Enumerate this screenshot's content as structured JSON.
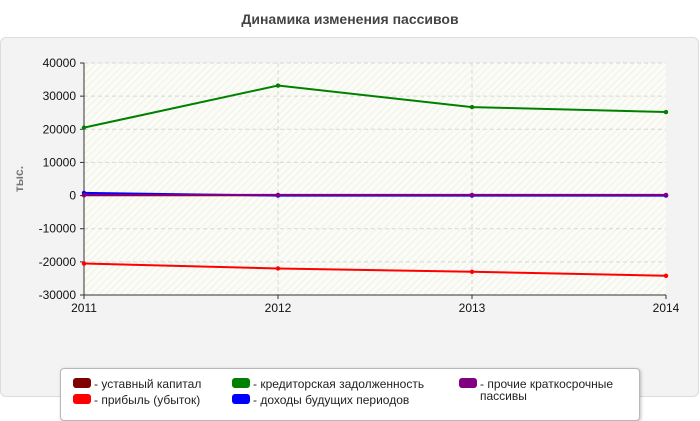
{
  "chart_data": {
    "type": "line",
    "title": "Динамика изменения пассивов",
    "ylabel": "тыс.",
    "xlabel": "",
    "x": [
      "2011",
      "2012",
      "2013",
      "2014"
    ],
    "ylim": [
      -30000,
      40000
    ],
    "yticks": [
      40000,
      30000,
      20000,
      10000,
      0,
      -10000,
      -20000,
      -30000
    ],
    "grid": true,
    "legend_position": "bottom",
    "series": [
      {
        "name": "- уставный капитал",
        "color": "#800000",
        "values": [
          100,
          100,
          100,
          100
        ]
      },
      {
        "name": "- прибыль (убыток)",
        "color": "#ff0000",
        "values": [
          -20500,
          -22000,
          -23000,
          -24200
        ]
      },
      {
        "name": "- кредиторская задолженность",
        "color": "#008000",
        "values": [
          20500,
          33200,
          26700,
          25200
        ]
      },
      {
        "name": "- доходы будущих периодов",
        "color": "#0000ff",
        "values": [
          800,
          0,
          0,
          0
        ]
      },
      {
        "name": "- прочие краткосрочные пассивы",
        "color": "#800080",
        "values": [
          200,
          200,
          200,
          200
        ]
      }
    ]
  }
}
